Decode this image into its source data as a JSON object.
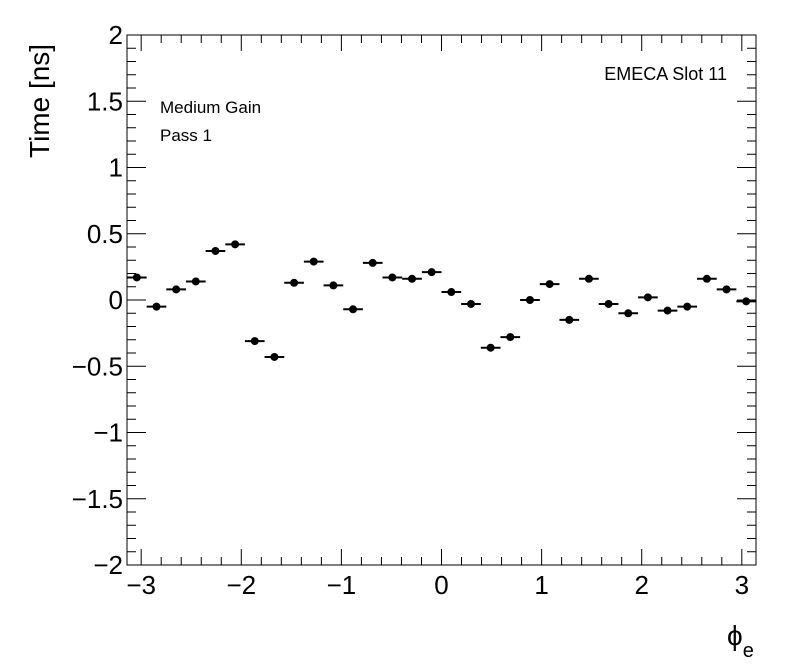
{
  "chart_data": {
    "type": "scatter",
    "title": "",
    "xlabel": "ϕ",
    "xlabel_sub": "e",
    "ylabel": "Time [ns]",
    "xlim": [
      -3.14159,
      3.14159
    ],
    "ylim": [
      -2,
      2
    ],
    "x_ticks": [
      -3,
      -2,
      -1,
      0,
      1,
      2,
      3
    ],
    "x_tick_labels": [
      "−3",
      "−2",
      "−1",
      "0",
      "1",
      "2",
      "3"
    ],
    "y_ticks": [
      -2,
      -1.5,
      -1,
      -0.5,
      0,
      0.5,
      1,
      1.5,
      2
    ],
    "y_tick_labels": [
      "−2",
      "−1.5",
      "−1",
      "−0.5",
      "0",
      "0.5",
      "1",
      "1.5",
      "2"
    ],
    "grid": false,
    "annotations": {
      "slot": "EMECA Slot 11",
      "gain": "Medium Gain",
      "pass": "Pass 1"
    },
    "bin_width": 0.19635,
    "points": [
      {
        "x": -3.0434,
        "y": 0.17
      },
      {
        "x": -2.8471,
        "y": -0.05
      },
      {
        "x": -2.6507,
        "y": 0.08
      },
      {
        "x": -2.4544,
        "y": 0.14
      },
      {
        "x": -2.258,
        "y": 0.37
      },
      {
        "x": -2.0617,
        "y": 0.42
      },
      {
        "x": -1.8653,
        "y": -0.31
      },
      {
        "x": -1.669,
        "y": -0.43
      },
      {
        "x": -1.4726,
        "y": 0.13
      },
      {
        "x": -1.2763,
        "y": 0.29
      },
      {
        "x": -1.0799,
        "y": 0.11
      },
      {
        "x": -0.8836,
        "y": -0.07
      },
      {
        "x": -0.6872,
        "y": 0.28
      },
      {
        "x": -0.4909,
        "y": 0.17
      },
      {
        "x": -0.2945,
        "y": 0.16
      },
      {
        "x": -0.0982,
        "y": 0.21
      },
      {
        "x": 0.0982,
        "y": 0.06
      },
      {
        "x": 0.2945,
        "y": -0.03
      },
      {
        "x": 0.4909,
        "y": -0.36
      },
      {
        "x": 0.6872,
        "y": -0.28
      },
      {
        "x": 0.8836,
        "y": 0.0
      },
      {
        "x": 1.0799,
        "y": 0.12
      },
      {
        "x": 1.2763,
        "y": -0.15
      },
      {
        "x": 1.4726,
        "y": 0.16
      },
      {
        "x": 1.669,
        "y": -0.03
      },
      {
        "x": 1.8653,
        "y": -0.1
      },
      {
        "x": 2.0617,
        "y": 0.02
      },
      {
        "x": 2.258,
        "y": -0.08
      },
      {
        "x": 2.4544,
        "y": -0.05
      },
      {
        "x": 2.6507,
        "y": 0.16
      },
      {
        "x": 2.8471,
        "y": 0.08
      },
      {
        "x": 3.0434,
        "y": -0.01
      }
    ]
  }
}
